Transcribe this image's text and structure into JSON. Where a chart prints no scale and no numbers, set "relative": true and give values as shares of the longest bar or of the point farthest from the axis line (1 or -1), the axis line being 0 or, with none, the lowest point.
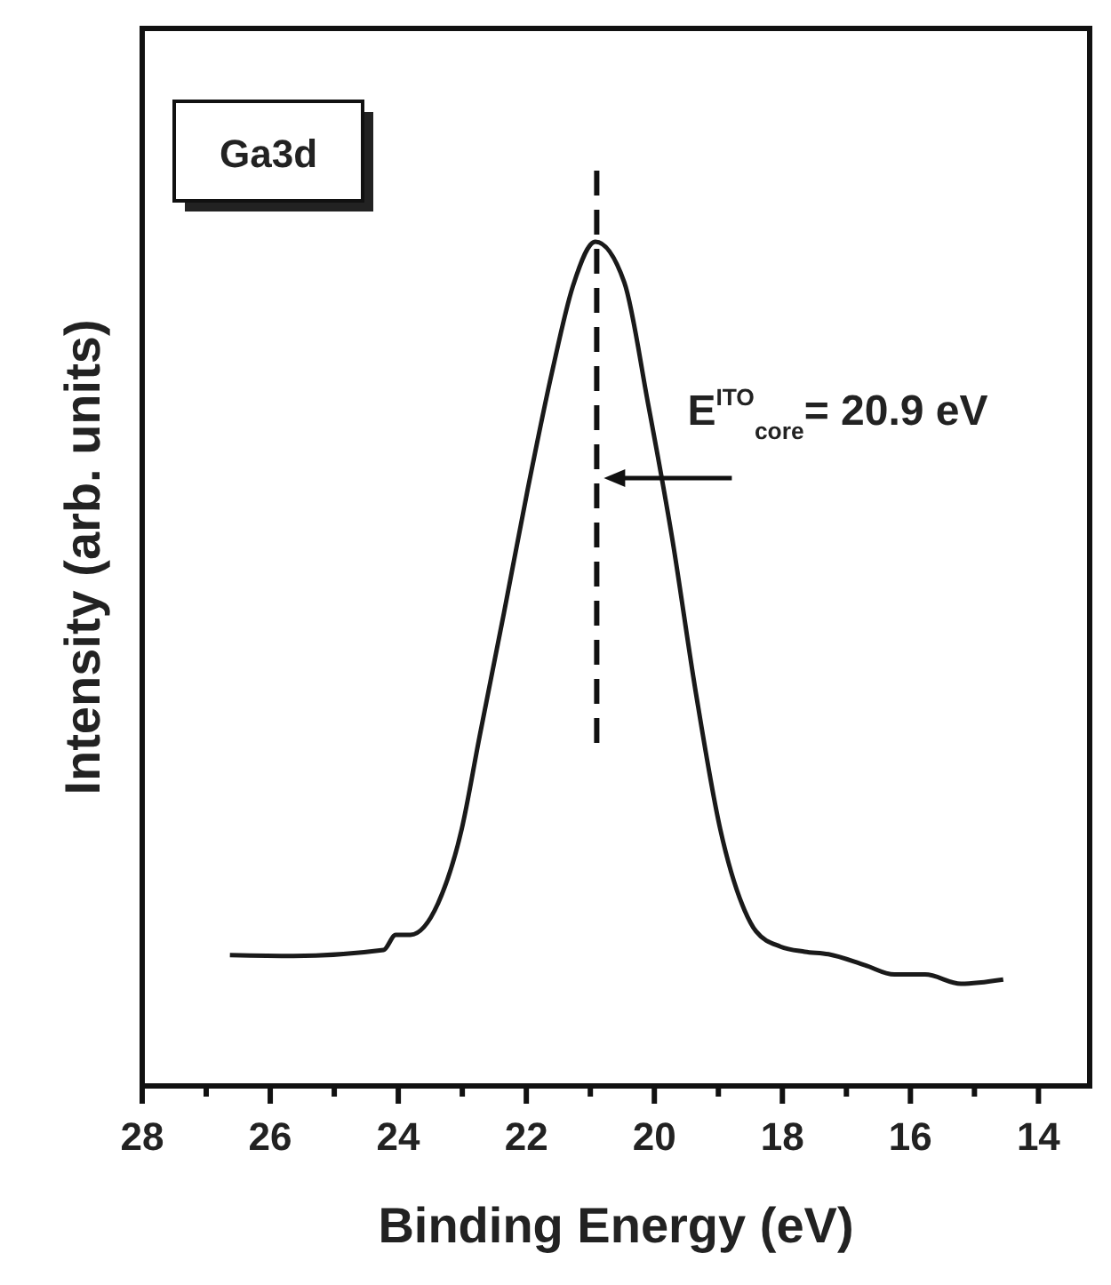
{
  "chart_data": {
    "type": "line",
    "relative": true,
    "xlabel": "Binding Energy (eV)",
    "ylabel": "Intensity (arb. units)",
    "xlim": [
      28,
      13.2
    ],
    "xticks": [
      28,
      {
        "value": 27,
        "label": null
      },
      26,
      {
        "value": 25,
        "label": null
      },
      24,
      {
        "value": 23,
        "label": null
      },
      22,
      {
        "value": 21,
        "label": null
      },
      20,
      {
        "value": 19,
        "label": null
      },
      18,
      {
        "value": 17,
        "label": null
      },
      16,
      {
        "value": 15,
        "label": null
      },
      14
    ],
    "series": [
      {
        "color": "#1a1a1a",
        "x": [
          26.63,
          25.64,
          24.23,
          24.04,
          23.81,
          23.38,
          23.01,
          22.73,
          22.35,
          21.98,
          21.6,
          21.27,
          20.92,
          20.47,
          20.1,
          19.72,
          19.35,
          18.97,
          18.59,
          18.41,
          18.03,
          17.65,
          17.28,
          16.71,
          16.25,
          15.77,
          15.21,
          14.55
        ],
        "values": [
          0.155,
          0.154,
          0.161,
          0.179,
          0.179,
          0.216,
          0.304,
          0.414,
          0.56,
          0.706,
          0.845,
          0.948,
          1.0,
          0.952,
          0.809,
          0.648,
          0.465,
          0.304,
          0.208,
          0.183,
          0.165,
          0.159,
          0.156,
          0.143,
          0.132,
          0.132,
          0.121,
          0.126
        ]
      }
    ],
    "ref_lines": [
      {
        "axis": "x",
        "value": 20.9,
        "line_style": "dashed"
      }
    ],
    "annotations": [
      "Ga3d",
      {
        "text": "E$^{ITO}$$_{core}$= 20.9 eV",
        "x": 20.9,
        "y": 0.72
      }
    ],
    "marker": "none",
    "line_style": "solid"
  }
}
